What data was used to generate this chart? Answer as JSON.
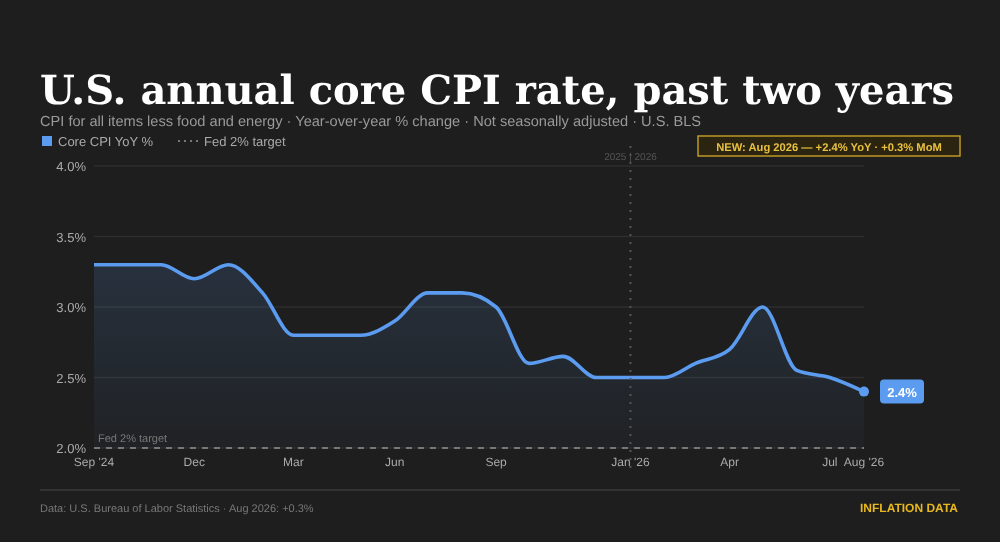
{
  "chart_data": {
    "type": "area",
    "title": "U.S. annual core CPI rate, past two years",
    "subtitle": "CPI for all items less food and energy · Year-over-year % change · Not seasonally adjusted · U.S. BLS",
    "x": [
      "2024-09",
      "2024-10",
      "2024-11",
      "2024-12",
      "2025-01",
      "2025-02",
      "2025-03",
      "2025-04",
      "2025-05",
      "2025-06",
      "2025-07",
      "2025-08",
      "2025-09",
      "2025-10",
      "2025-11",
      "2025-12",
      "2026-01",
      "2026-02",
      "2026-03",
      "2026-04",
      "2026-05",
      "2026-06",
      "2026-07",
      "2026-08"
    ],
    "series": [
      {
        "name": "Core CPI YoY %",
        "color": "#5b9cf0",
        "values": [
          3.3,
          3.3,
          3.3,
          3.2,
          3.3,
          3.1,
          2.8,
          2.8,
          2.8,
          2.9,
          3.1,
          3.1,
          3.0,
          2.6,
          2.65,
          2.5,
          2.5,
          2.5,
          2.6,
          2.7,
          3.0,
          2.55,
          2.5,
          2.4
        ],
        "value_labels": [
          null,
          null,
          null,
          null,
          null,
          null,
          null,
          null,
          null,
          null,
          null,
          null,
          null,
          null,
          null,
          null,
          null,
          null,
          null,
          null,
          null,
          null,
          null,
          "2.4%"
        ]
      }
    ],
    "xlim": [
      "2024-09",
      "2026-08"
    ],
    "xticks": [
      {
        "value": "2024-09",
        "label": "Sep '24"
      },
      {
        "value": "2024-12",
        "label": "Dec"
      },
      {
        "value": "2025-03",
        "label": "Mar"
      },
      {
        "value": "2025-06",
        "label": "Jun"
      },
      {
        "value": "2025-09",
        "label": "Sep"
      },
      {
        "value": "2026-01",
        "label": "Jan '26"
      },
      {
        "value": "2026-04",
        "label": "Apr"
      },
      {
        "value": "2026-07",
        "label": "Jul"
      },
      {
        "value": "2026-08",
        "label": "Aug '26"
      }
    ],
    "ylim": [
      2,
      4
    ],
    "yticks": [
      {
        "value": 2,
        "label": "2.0%"
      },
      {
        "value": 2.5,
        "label": "2.5%"
      },
      {
        "value": 3,
        "label": "3.0%"
      },
      {
        "value": 3.5,
        "label": "3.5%"
      },
      {
        "value": 4,
        "label": "4.0%"
      }
    ],
    "grid": "y",
    "legend": "top left",
    "ref_lines": [
      {
        "axis": "y",
        "value": 2,
        "label": "Fed 2% target",
        "line_style": "dashed",
        "color": "#777777"
      },
      {
        "axis": "x",
        "value": "2026-01",
        "label": "2025 | 2026",
        "line_style": "dotted",
        "color": "#555555"
      }
    ],
    "annotations": [
      "NEW: Aug 2026 — +2.4% YoY · +0.3% MoM",
      "Data: U.S. Bureau of Labor Statistics · Aug 2026: +0.3%",
      "INFLATION DATA"
    ]
  }
}
